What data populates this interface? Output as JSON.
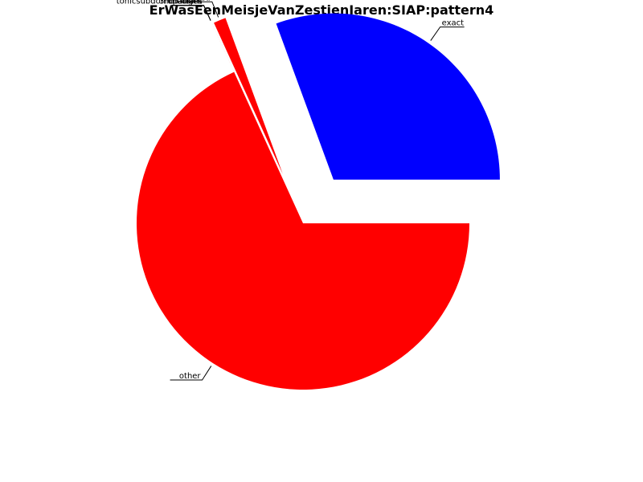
{
  "chart_data": {
    "type": "pie",
    "title": "ErWasEenMeisjeVanZestienJaren:SIAP:pattern4",
    "slices": [
      {
        "label": "exact",
        "value": 30.6,
        "color": "#0000ff",
        "exploded": true
      },
      {
        "label": "transposed",
        "value": 1.2,
        "color": "#ff0000",
        "exploded": true
      },
      {
        "label": "tonicsubdomchanges",
        "value": 0.001,
        "color": "#ff0000",
        "exploded": true
      },
      {
        "label": "mediant",
        "value": 0.001,
        "color": "#ff0000",
        "exploded": true
      },
      {
        "label": "3rdpattern",
        "value": 0.001,
        "color": "#ff0000",
        "exploded": true
      },
      {
        "label": "other",
        "value": 68.2,
        "color": "#ff0000",
        "exploded": false
      }
    ],
    "legend": "none"
  }
}
